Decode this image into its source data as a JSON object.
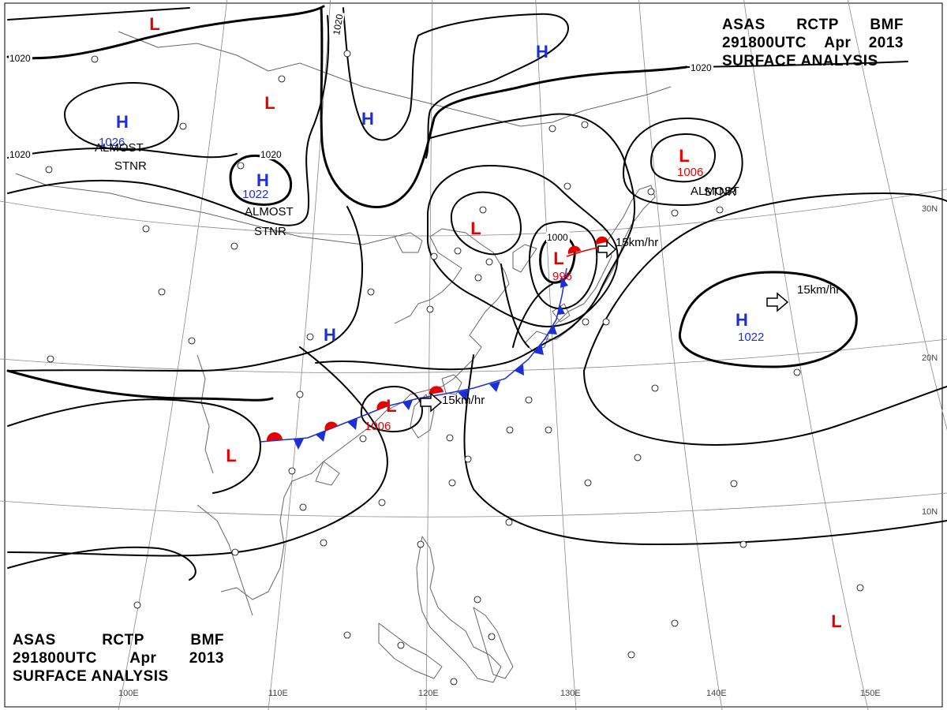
{
  "title": {
    "agency": "ASAS",
    "station": "RCTP",
    "office": "BMF",
    "time": "291800UTC",
    "month": "Apr",
    "year": "2013",
    "product": "SURFACE ANALYSIS"
  },
  "colors": {
    "high": "#1a2fd6",
    "low": "#e60000",
    "isobar": "#000000",
    "coast": "#555555",
    "grid": "#777777",
    "cold_front": "#1a2fd6",
    "warm_front": "#e60000"
  },
  "isobar_labels": [
    "1020",
    "1020",
    "1020",
    "1020",
    "1020",
    "1000"
  ],
  "pressure_centers": [
    {
      "type": "H",
      "value": "1026",
      "note": "ALMOST STNR"
    },
    {
      "type": "H",
      "value": "1022",
      "note": "ALMOST STNR"
    },
    {
      "type": "H",
      "value": ""
    },
    {
      "type": "H",
      "value": ""
    },
    {
      "type": "H",
      "value": ""
    },
    {
      "type": "H",
      "value": "1022",
      "motion": "15km/hr"
    },
    {
      "type": "L",
      "value": ""
    },
    {
      "type": "L",
      "value": ""
    },
    {
      "type": "L",
      "value": "1006",
      "note": "ALMOST STNR"
    },
    {
      "type": "L",
      "value": ""
    },
    {
      "type": "L",
      "value": "996",
      "motion": "15km/hr"
    },
    {
      "type": "L",
      "value": "1006",
      "motion": "15km/hr"
    },
    {
      "type": "L",
      "value": ""
    },
    {
      "type": "L",
      "value": ""
    }
  ],
  "longitude_labels": [
    "100E",
    "110E",
    "120E",
    "130E",
    "140E",
    "150E"
  ],
  "latitude_labels": [
    "30N",
    "20N",
    "10N"
  ]
}
